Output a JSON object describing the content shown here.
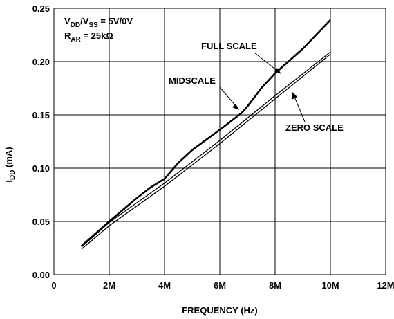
{
  "chart_data": {
    "type": "line",
    "xlabel": "FREQUENCY (Hz)",
    "ylabel_main": "I",
    "ylabel_sub": "DD",
    "ylabel_unit": " (mA)",
    "x_range": [
      0,
      12000000
    ],
    "y_range": [
      0.0,
      0.25
    ],
    "grid": true,
    "x_ticks": [
      {
        "value": 0,
        "label": "0"
      },
      {
        "value": 2000000,
        "label": "2M"
      },
      {
        "value": 4000000,
        "label": "4M"
      },
      {
        "value": 6000000,
        "label": "6M"
      },
      {
        "value": 8000000,
        "label": "8M"
      },
      {
        "value": 10000000,
        "label": "10M"
      },
      {
        "value": 12000000,
        "label": "12M"
      }
    ],
    "y_ticks": [
      {
        "value": 0.0,
        "label": "0.00"
      },
      {
        "value": 0.05,
        "label": "0.05"
      },
      {
        "value": 0.1,
        "label": "0.10"
      },
      {
        "value": 0.15,
        "label": "0.15"
      },
      {
        "value": 0.2,
        "label": "0.20"
      },
      {
        "value": 0.25,
        "label": "0.25"
      }
    ],
    "conditions": {
      "line1": {
        "v1": "V",
        "s1": "DD",
        "v2": "/V",
        "s2": "SS",
        "rest": " = 5V/0V"
      },
      "line2": {
        "v1": "R",
        "s1": "AR",
        "rest": " = 25kΩ"
      }
    },
    "series": [
      {
        "name": "FULL SCALE",
        "x": [
          1000000,
          2000000,
          3000000,
          3500000,
          4000000,
          4500000,
          5000000,
          6000000,
          6800000,
          7000000,
          7500000,
          8000000,
          9000000,
          10000000
        ],
        "values": [
          0.027,
          0.05,
          0.072,
          0.082,
          0.09,
          0.105,
          0.117,
          0.136,
          0.152,
          0.158,
          0.175,
          0.189,
          0.212,
          0.239
        ]
      },
      {
        "name": "MIDSCALE",
        "x": [
          1000000,
          2000000,
          4000000,
          6000000,
          8000000,
          10000000
        ],
        "values": [
          0.026,
          0.049,
          0.086,
          0.126,
          0.168,
          0.209
        ]
      },
      {
        "name": "ZERO SCALE",
        "x": [
          1000000,
          2000000,
          4000000,
          6000000,
          8000000,
          10000000
        ],
        "values": [
          0.024,
          0.046,
          0.083,
          0.123,
          0.165,
          0.207
        ]
      }
    ],
    "annotations": [
      {
        "text": "FULL SCALE"
      },
      {
        "text": "MIDSCALE"
      },
      {
        "text": "ZERO SCALE"
      }
    ]
  }
}
